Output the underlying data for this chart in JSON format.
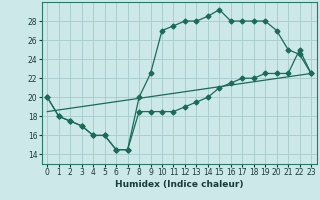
{
  "title": "",
  "xlabel": "Humidex (Indice chaleur)",
  "bg_color": "#cce8e8",
  "grid_color": "#aacece",
  "line_color": "#1a6b5a",
  "xlim": [
    -0.5,
    23.5
  ],
  "ylim": [
    13.0,
    30.0
  ],
  "yticks": [
    14,
    16,
    18,
    20,
    22,
    24,
    26,
    28
  ],
  "xticks": [
    0,
    1,
    2,
    3,
    4,
    5,
    6,
    7,
    8,
    9,
    10,
    11,
    12,
    13,
    14,
    15,
    16,
    17,
    18,
    19,
    20,
    21,
    22,
    23
  ],
  "line1_x": [
    0,
    1,
    2,
    3,
    4,
    5,
    6,
    7,
    8,
    9,
    10,
    11,
    12,
    13,
    14,
    15,
    16,
    17,
    18,
    19,
    20,
    21,
    22,
    23
  ],
  "line1_y": [
    20,
    18,
    17.5,
    17,
    16,
    16,
    14.5,
    14.5,
    20,
    22.5,
    27,
    27.5,
    28,
    28,
    28.5,
    29.2,
    28,
    28,
    28,
    28,
    27,
    25,
    24.5,
    22.5
  ],
  "line2_x": [
    0,
    1,
    2,
    3,
    4,
    5,
    6,
    7,
    8,
    9,
    10,
    11,
    12,
    13,
    14,
    15,
    16,
    17,
    18,
    19,
    20,
    21,
    22,
    23
  ],
  "line2_y": [
    20,
    18,
    17.5,
    17,
    16,
    16,
    14.5,
    14.5,
    18.5,
    18.5,
    18.5,
    18.5,
    19,
    19.5,
    20,
    21,
    21.5,
    22,
    22,
    22.5,
    22.5,
    22.5,
    25,
    22.5
  ],
  "line3_x": [
    0,
    23
  ],
  "line3_y": [
    18.5,
    22.5
  ]
}
